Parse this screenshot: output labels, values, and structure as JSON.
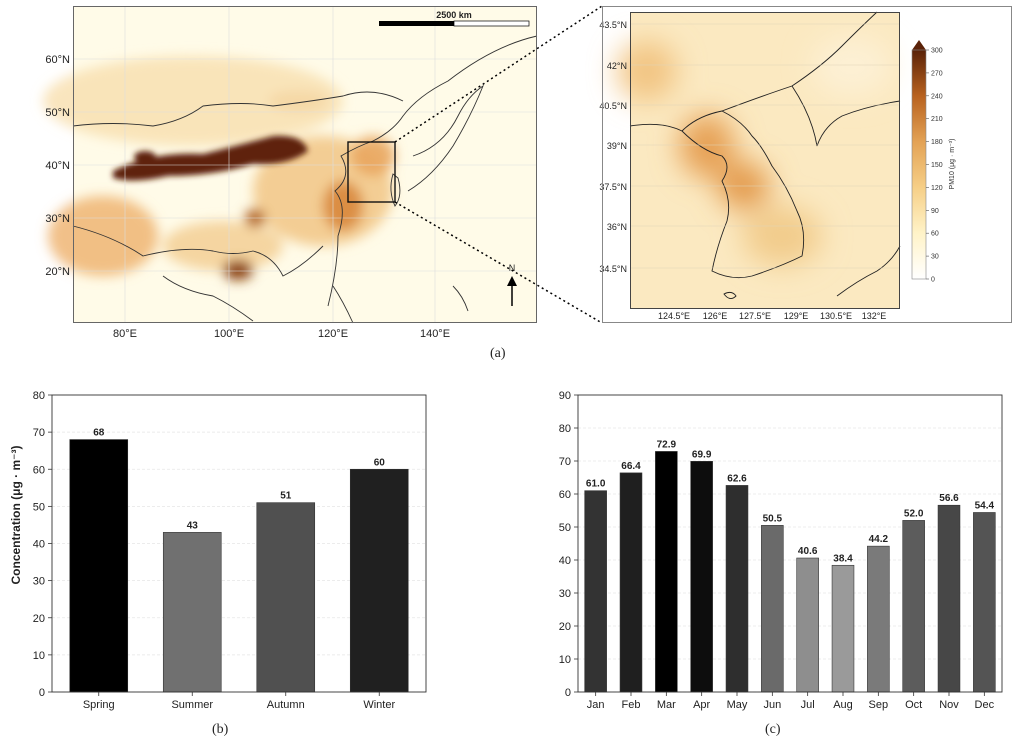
{
  "map_main": {
    "scale_label": "2500 km",
    "lat_ticks": [
      "60°N",
      "50°N",
      "40°N",
      "30°N",
      "20°N"
    ],
    "lon_ticks": [
      "80°E",
      "100°E",
      "120°E",
      "140°E"
    ],
    "caption": "(a)"
  },
  "map_inset": {
    "lat_ticks": [
      "43.5°N",
      "42°N",
      "40.5°N",
      "39°N",
      "37.5°N",
      "36°N",
      "34.5°N"
    ],
    "lon_ticks": [
      "124.5°E",
      "126°E",
      "127.5°E",
      "129°E",
      "130.5°E",
      "132°E"
    ],
    "colorbar_ticks": [
      "300",
      "270",
      "240",
      "210",
      "180",
      "150",
      "120",
      "90",
      "60",
      "30",
      "0"
    ],
    "colorbar_label": "PM10 (μg · m⁻³)"
  },
  "chart_data": [
    {
      "id": "b",
      "type": "bar",
      "categories": [
        "Spring",
        "Summer",
        "Autumn",
        "Winter"
      ],
      "values": [
        68,
        43,
        51,
        60
      ],
      "value_labels": [
        "68",
        "43",
        "51",
        "60"
      ],
      "bar_colors": [
        "#000000",
        "#707070",
        "#505050",
        "#202020"
      ],
      "ylabel": "Concentration (μg · m⁻³)",
      "ylim": [
        0,
        80
      ],
      "yticks": [
        0,
        10,
        20,
        30,
        40,
        50,
        60,
        70,
        80
      ],
      "grid": true,
      "caption": "(b)"
    },
    {
      "id": "c",
      "type": "bar",
      "categories": [
        "Jan",
        "Feb",
        "Mar",
        "Apr",
        "May",
        "Jun",
        "Jul",
        "Aug",
        "Sep",
        "Oct",
        "Nov",
        "Dec"
      ],
      "values": [
        61.0,
        66.4,
        72.9,
        69.9,
        62.6,
        50.5,
        40.6,
        38.4,
        44.2,
        52.0,
        56.6,
        54.4
      ],
      "value_labels": [
        "61.0",
        "66.4",
        "72.9",
        "69.9",
        "62.6",
        "50.5",
        "40.6",
        "38.4",
        "44.2",
        "52.0",
        "56.6",
        "54.4"
      ],
      "bar_colors": [
        "#333333",
        "#1f1f1f",
        "#000000",
        "#0d0d0d",
        "#2e2e2e",
        "#6a6a6a",
        "#8e8e8e",
        "#9a9a9a",
        "#7a7a7a",
        "#5c5c5c",
        "#474747",
        "#545454"
      ],
      "ylabel": "",
      "ylim": [
        0,
        90
      ],
      "yticks": [
        0,
        10,
        20,
        30,
        40,
        50,
        60,
        70,
        80,
        90
      ],
      "grid": true,
      "caption": "(c)"
    }
  ]
}
